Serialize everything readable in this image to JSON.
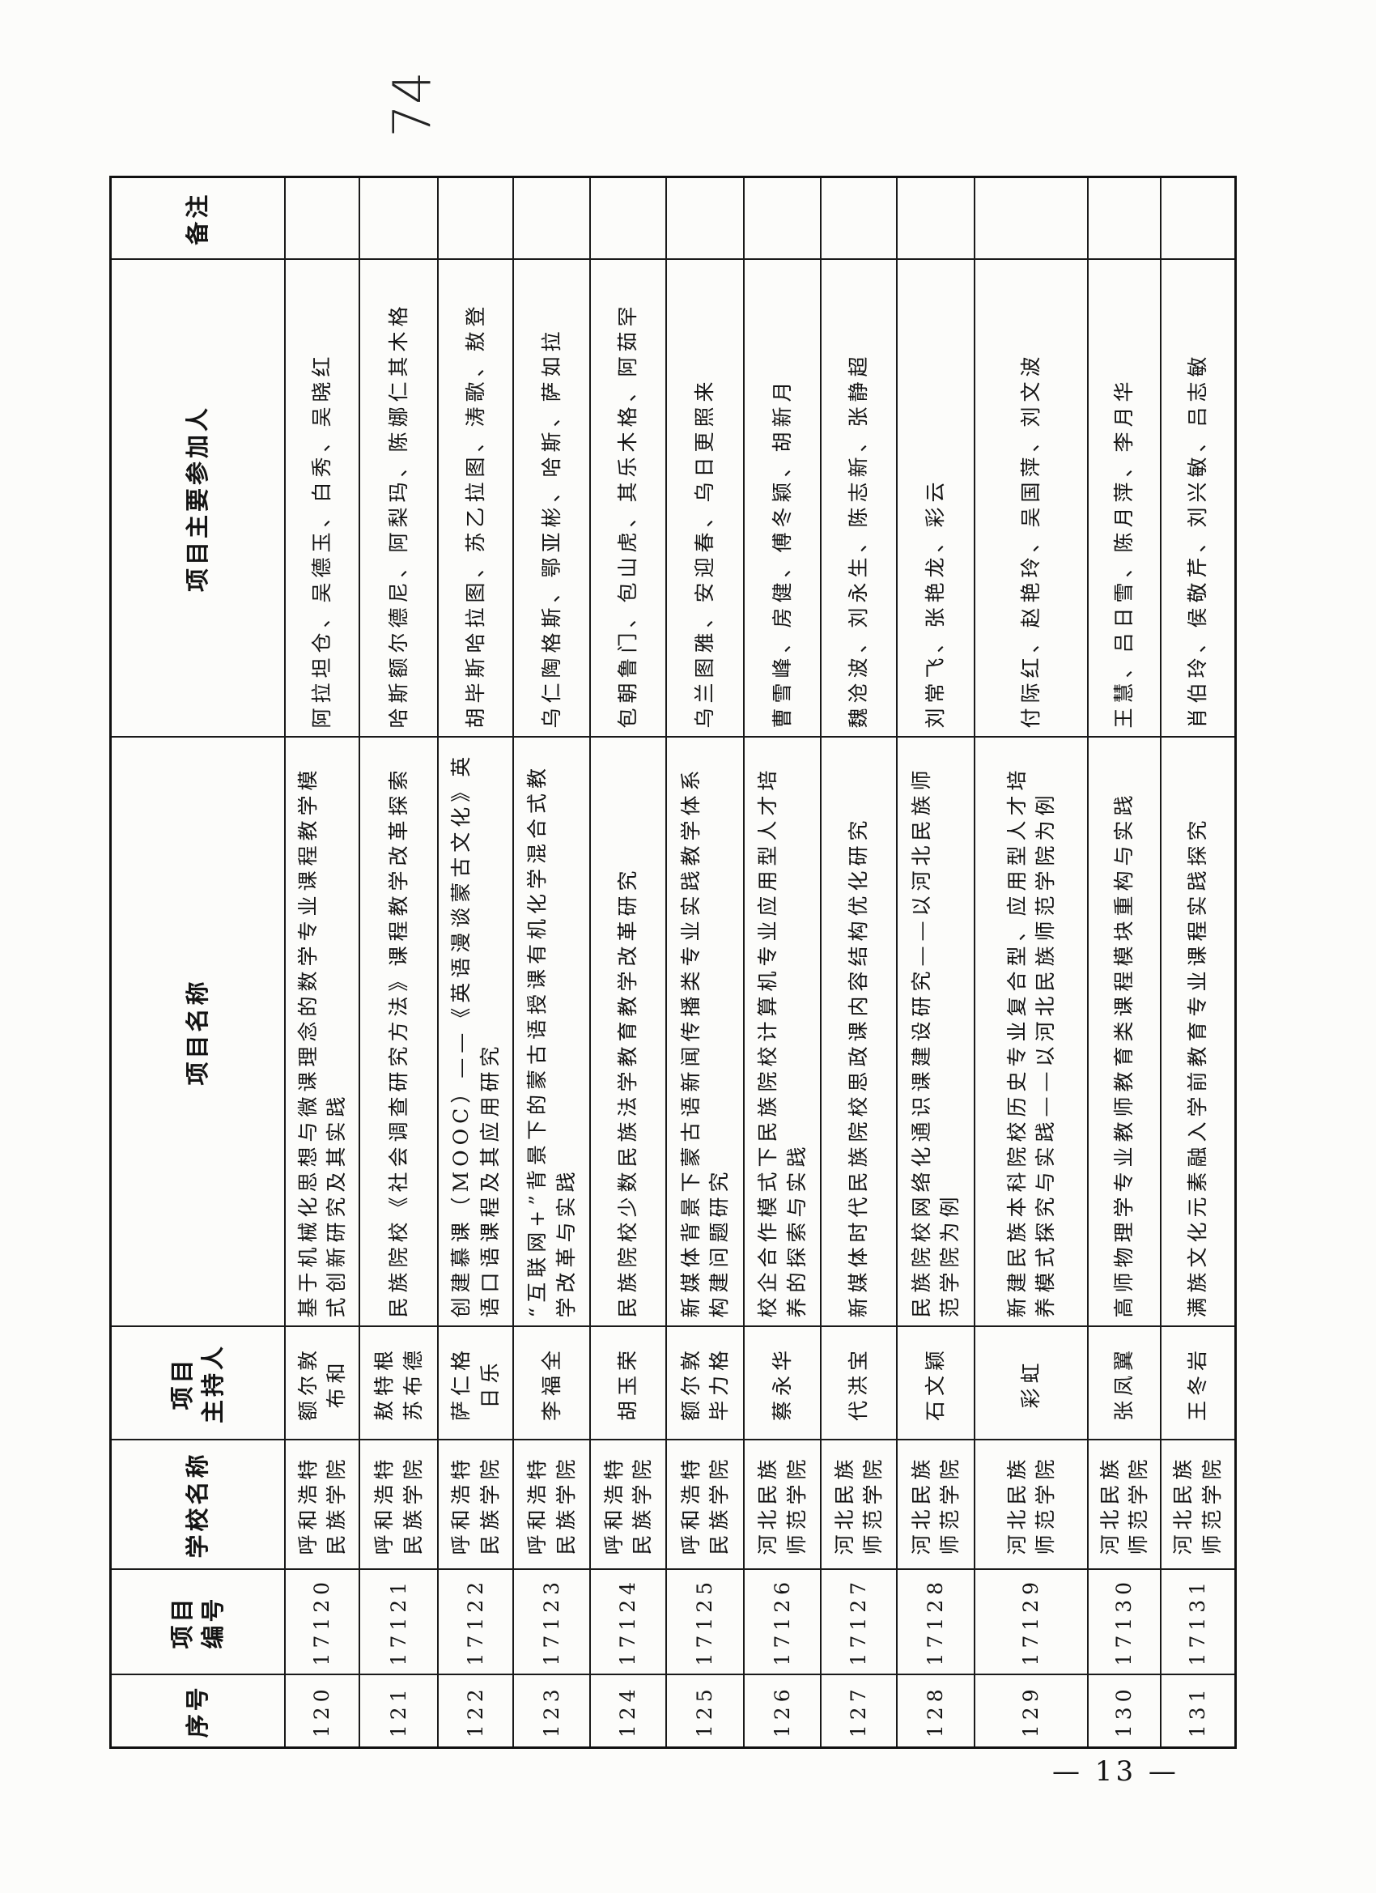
{
  "handwritten_note": "74",
  "headers": {
    "seq": "序号",
    "code": "项目\n编号",
    "school": "学校名称",
    "host": "项目\n主持人",
    "name": "项目名称",
    "members": "项目主要参加人",
    "remark": "备注"
  },
  "rows": [
    {
      "seq": "120",
      "code": "17120",
      "school": "呼和浩特民族学院",
      "host": "额尔敦布和",
      "name": "基于机械化思想与微课理念的数学专业课程教学模式创新研究及其实践",
      "members": "阿拉坦仓、吴德玉、白秀、吴晓红",
      "remark": ""
    },
    {
      "seq": "121",
      "code": "17121",
      "school": "呼和浩特民族学院",
      "host": "敖特根苏布德",
      "name": "民族院校《社会调查研究方法》课程教学改革探索",
      "members": "哈斯额尔德尼、阿梨玛、陈娜仁其木格",
      "remark": ""
    },
    {
      "seq": "122",
      "code": "17122",
      "school": "呼和浩特民族学院",
      "host": "萨仁格日乐",
      "name": "创建慕课（MOOC）——《英语漫谈蒙古文化》英语口语课程及其应用研究",
      "members": "胡毕斯哈拉图、苏乙拉图、涛歌、敖登",
      "remark": ""
    },
    {
      "seq": "123",
      "code": "17123",
      "school": "呼和浩特民族学院",
      "host": "李福全",
      "name": "“互联网+”背景下的蒙古语授课有机化学混合式教学改革与实践",
      "members": "乌仁陶格斯、鄂亚彬、哈斯、萨如拉",
      "remark": ""
    },
    {
      "seq": "124",
      "code": "17124",
      "school": "呼和浩特民族学院",
      "host": "胡玉荣",
      "name": "民族院校少数民族法学教育教学改革研究",
      "members": "包朝鲁门、包山虎、其乐木格、阿茹罕",
      "remark": ""
    },
    {
      "seq": "125",
      "code": "17125",
      "school": "呼和浩特民族学院",
      "host": "额尔敦毕力格",
      "name": "新媒体背景下蒙古语新闻传播类专业实践教学体系构建问题研究",
      "members": "乌兰图雅、安迎春、乌日更照来",
      "remark": ""
    },
    {
      "seq": "126",
      "code": "17126",
      "school": "河北民族师范学院",
      "host": "蔡永华",
      "name": "校企合作模式下民族院校计算机专业应用型人才培养的探索与实践",
      "members": "曹雪峰、房健、傅冬颖、胡新月",
      "remark": ""
    },
    {
      "seq": "127",
      "code": "17127",
      "school": "河北民族师范学院",
      "host": "代洪宝",
      "name": "新媒体时代民族院校思政课内容结构优化研究",
      "members": "魏沧波、刘永生、陈志新、张静超",
      "remark": ""
    },
    {
      "seq": "128",
      "code": "17128",
      "school": "河北民族师范学院",
      "host": "石文颖",
      "name": "民族院校网络化通识课建设研究——以河北民族师范学院为例",
      "members": "刘常飞、张艳龙、彩云",
      "remark": ""
    },
    {
      "seq": "129",
      "code": "17129",
      "school": "河北民族师范学院",
      "host": "彩虹",
      "name": "新建民族本科院校历史专业复合型、应用型人才培养模式探究与实践——以河北民族师范学院为例",
      "members": "付际红、赵艳玲、吴国萍、刘文波",
      "remark": ""
    },
    {
      "seq": "130",
      "code": "17130",
      "school": "河北民族师范学院",
      "host": "张凤翼",
      "name": "高师物理学专业教师教育类课程模块重构与实践",
      "members": "王慧、吕日雪、陈月萍、李月华",
      "remark": ""
    },
    {
      "seq": "131",
      "code": "17131",
      "school": "河北民族师范学院",
      "host": "王冬岩",
      "name": "满族文化元素融入学前教育专业课程实践探究",
      "members": "肖伯玲、侯敬芹、刘兴敏、吕志敏",
      "remark": ""
    }
  ],
  "page_number": "— 13 —"
}
